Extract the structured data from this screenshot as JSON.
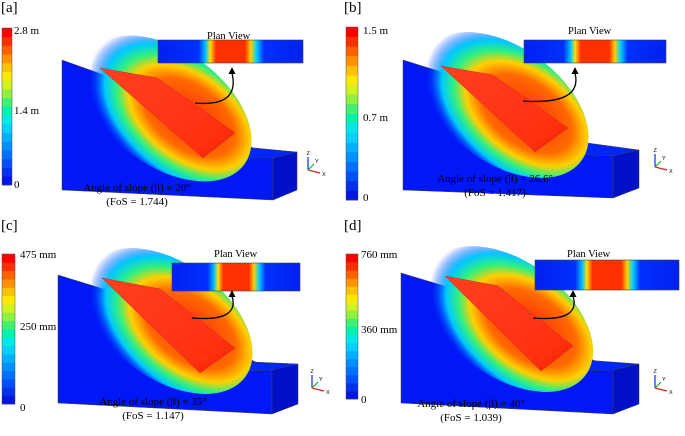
{
  "panels": [
    {
      "label": "[a]",
      "colorbar": {
        "max": "2.8 m",
        "mid": "1.4 m",
        "min": "0"
      },
      "plan_title": "Plan View",
      "angle_text": "Angle of slope (β) = 20°",
      "fos_text": "(FoS = 1.744)",
      "slope_angle_deg": 20,
      "fos": 1.744
    },
    {
      "label": "[b]",
      "colorbar": {
        "max": "1.5 m",
        "mid": "0.7 m",
        "min": "0"
      },
      "plan_title": "Plan View",
      "angle_text": "Angle of slope (β) = 26.6°",
      "fos_text": "(FoS = 1.417)",
      "slope_angle_deg": 26.6,
      "fos": 1.417
    },
    {
      "label": "[c]",
      "colorbar": {
        "max": "475 mm",
        "mid": "250 mm",
        "min": "0"
      },
      "plan_title": "Plan View",
      "angle_text": "Angle of slope (β) = 35°",
      "fos_text": "(FoS = 1.147)",
      "slope_angle_deg": 35,
      "fos": 1.147
    },
    {
      "label": "[d]",
      "colorbar": {
        "max": "760 mm",
        "mid": "360 mm",
        "min": "0"
      },
      "plan_title": "Plan View",
      "angle_text": "Angle of slope (β) = 40°",
      "fos_text": "(FoS = 1.039)",
      "slope_angle_deg": 40,
      "fos": 1.039
    }
  ],
  "axis_letters": {
    "z": "Z",
    "y": "Y",
    "x": "X"
  },
  "colors": {
    "colormap": [
      "#0015e0",
      "#0030f0",
      "#0050ff",
      "#0070ff",
      "#0090ff",
      "#00b0ff",
      "#00cfff",
      "#00e8e8",
      "#00f0b0",
      "#40f070",
      "#90f040",
      "#d0f020",
      "#ffe800",
      "#ffc000",
      "#ff9000",
      "#ff6000",
      "#ff3000",
      "#ff0000"
    ],
    "model_base": "#0018f5",
    "slope_face": "#ff3818",
    "outline": "#404040"
  }
}
